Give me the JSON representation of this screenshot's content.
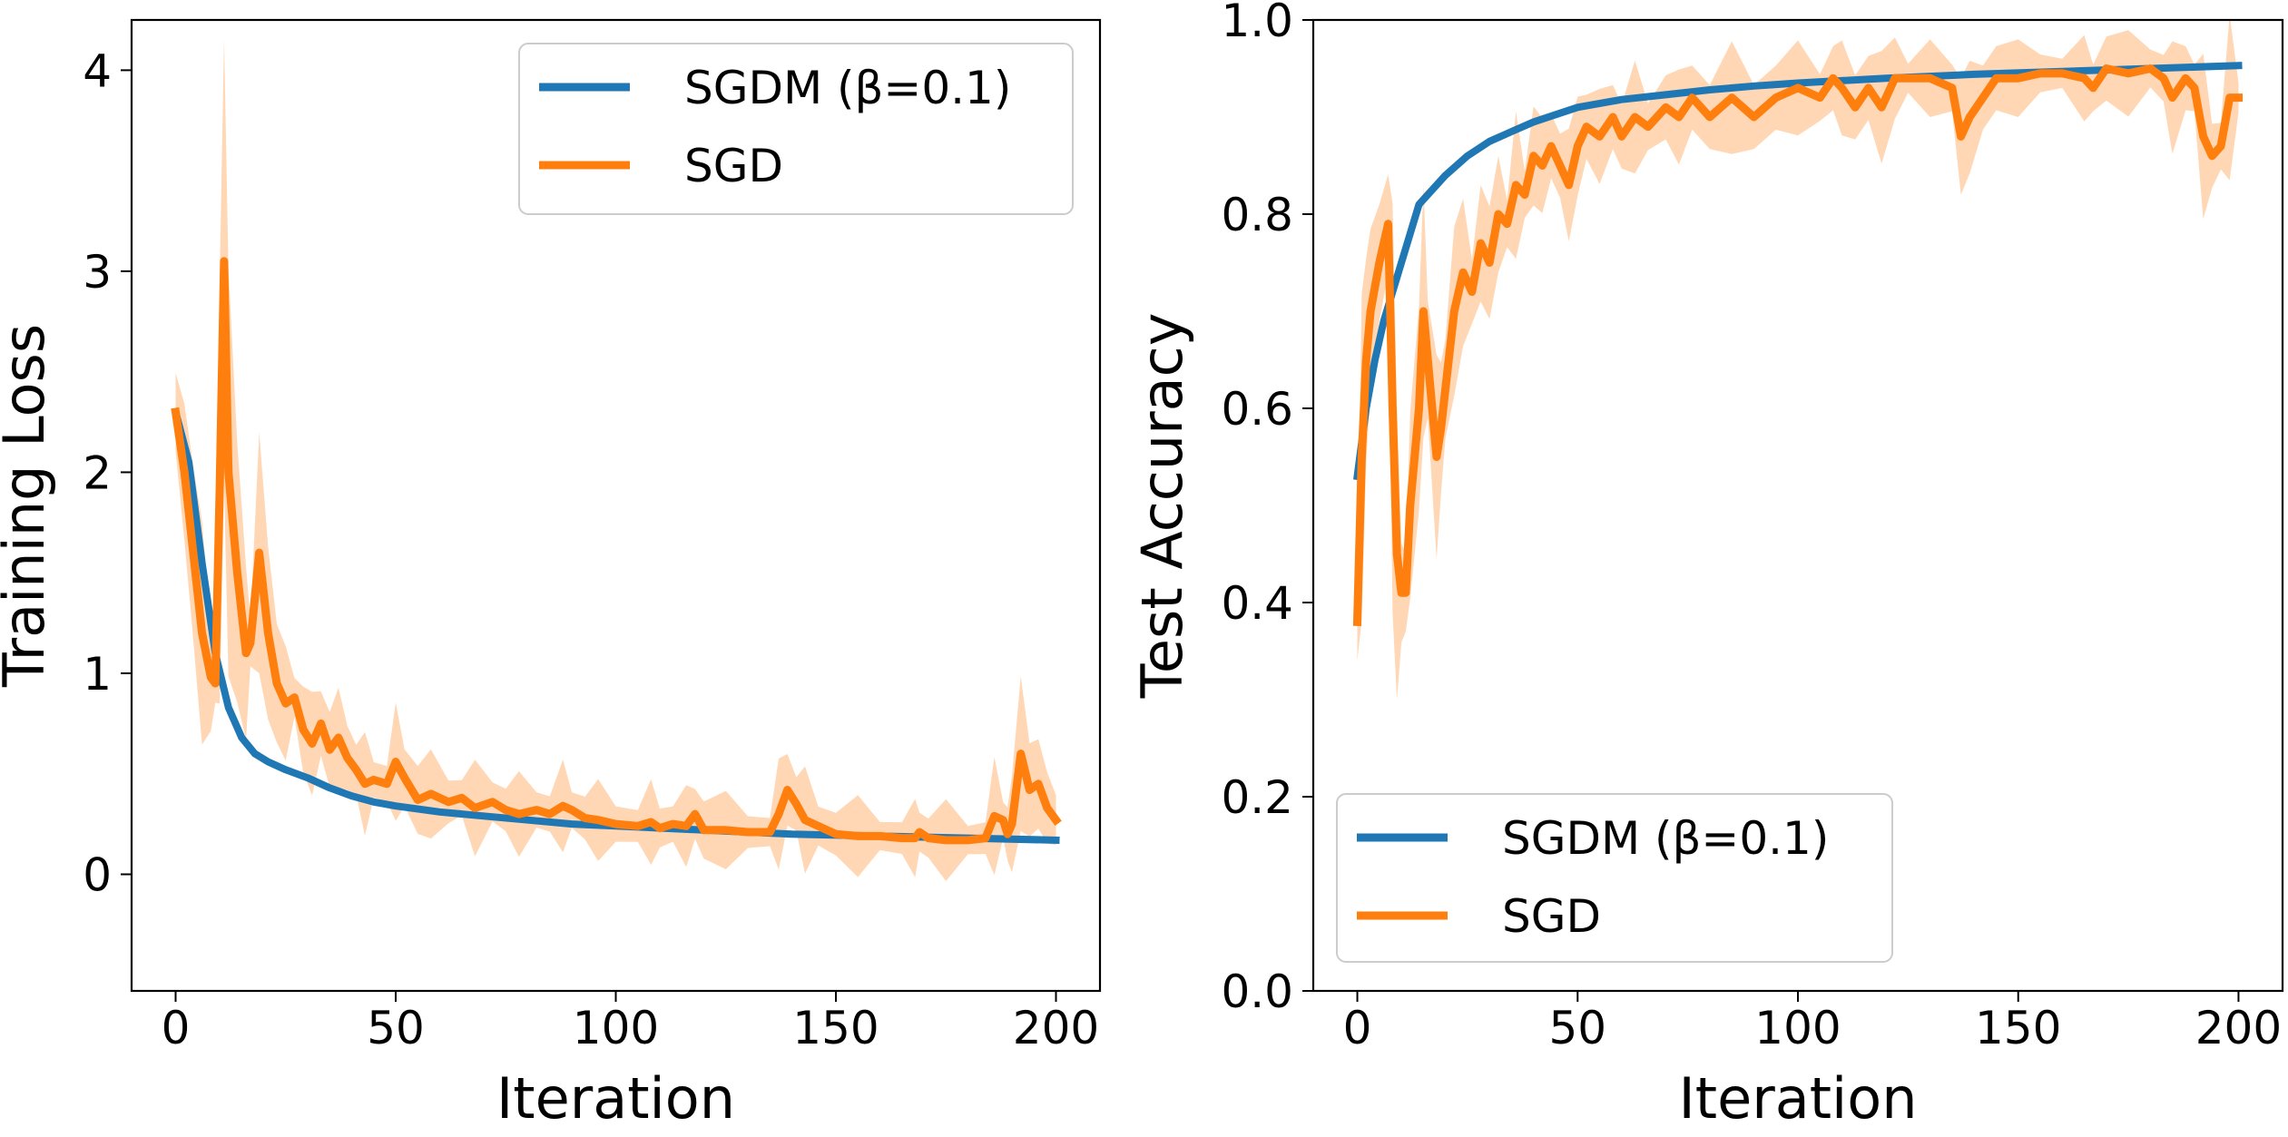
{
  "colors": {
    "sgdm": "#1f77b4",
    "sgd": "#ff7f0e",
    "band": "#ffd7b5"
  },
  "chart_data": [
    {
      "type": "line",
      "title": "",
      "xlabel": "Iteration",
      "ylabel": "Training Loss",
      "xlim": [
        -10,
        210
      ],
      "ylim": [
        -0.58,
        4.25
      ],
      "xticks": [
        0,
        50,
        100,
        150,
        200
      ],
      "xtick_labels": [
        "0",
        "50",
        "100",
        "150",
        "200"
      ],
      "yticks": [
        0,
        1,
        2,
        3,
        4
      ],
      "ytick_labels": [
        "0",
        "1",
        "2",
        "3",
        "4"
      ],
      "legend": {
        "location": "upper-right",
        "entries": [
          "SGDM (β=0.1)",
          "SGD"
        ]
      },
      "series": [
        {
          "name": "SGDM (β=0.1)",
          "key": "sgdm",
          "x": [
            0,
            3,
            6,
            9,
            12,
            15,
            18,
            21,
            25,
            30,
            35,
            40,
            45,
            50,
            60,
            70,
            80,
            90,
            100,
            120,
            140,
            160,
            180,
            200
          ],
          "y": [
            2.3,
            2.05,
            1.55,
            1.1,
            0.83,
            0.68,
            0.6,
            0.56,
            0.52,
            0.48,
            0.43,
            0.39,
            0.36,
            0.34,
            0.31,
            0.29,
            0.27,
            0.25,
            0.24,
            0.22,
            0.2,
            0.19,
            0.18,
            0.17
          ]
        },
        {
          "name": "SGD",
          "key": "sgd",
          "x": [
            0,
            2,
            4,
            6,
            8,
            9,
            10,
            11,
            12,
            14,
            16,
            17,
            19,
            21,
            23,
            25,
            27,
            29,
            31,
            33,
            35,
            37,
            39,
            41,
            43,
            45,
            48,
            50,
            52,
            55,
            58,
            62,
            65,
            68,
            72,
            75,
            78,
            82,
            85,
            88,
            90,
            93,
            96,
            100,
            105,
            108,
            110,
            113,
            116,
            118,
            120,
            125,
            130,
            135,
            137,
            139,
            141,
            143,
            146,
            150,
            155,
            160,
            165,
            168,
            169,
            171,
            175,
            180,
            184,
            186,
            188,
            189,
            190,
            192,
            194,
            196,
            198,
            200
          ],
          "y": [
            2.3,
            2.0,
            1.6,
            1.2,
            0.98,
            0.95,
            1.9,
            3.05,
            2.0,
            1.5,
            1.1,
            1.15,
            1.6,
            1.2,
            0.95,
            0.85,
            0.88,
            0.72,
            0.65,
            0.75,
            0.62,
            0.68,
            0.58,
            0.52,
            0.45,
            0.47,
            0.45,
            0.56,
            0.48,
            0.37,
            0.4,
            0.36,
            0.38,
            0.33,
            0.36,
            0.32,
            0.3,
            0.32,
            0.3,
            0.34,
            0.32,
            0.28,
            0.27,
            0.25,
            0.24,
            0.26,
            0.23,
            0.25,
            0.24,
            0.3,
            0.22,
            0.22,
            0.21,
            0.21,
            0.3,
            0.42,
            0.35,
            0.27,
            0.24,
            0.2,
            0.19,
            0.19,
            0.18,
            0.18,
            0.21,
            0.18,
            0.17,
            0.17,
            0.18,
            0.29,
            0.27,
            0.2,
            0.25,
            0.6,
            0.42,
            0.45,
            0.33,
            0.27
          ]
        }
      ]
    },
    {
      "type": "line",
      "title": "",
      "xlabel": "Iteration",
      "ylabel": "Test Accuracy",
      "xlim": [
        -10,
        210
      ],
      "ylim": [
        0.0,
        1.0
      ],
      "xticks": [
        0,
        50,
        100,
        150,
        200
      ],
      "xtick_labels": [
        "0",
        "50",
        "100",
        "150",
        "200"
      ],
      "yticks": [
        0.0,
        0.2,
        0.4,
        0.6,
        0.8,
        1.0
      ],
      "ytick_labels": [
        "0.0",
        "0.2",
        "0.4",
        "0.6",
        "0.8",
        "1.0"
      ],
      "legend": {
        "location": "lower-left",
        "entries": [
          "SGDM (β=0.1)",
          "SGD"
        ]
      },
      "series": [
        {
          "name": "SGDM (β=0.1)",
          "key": "sgdm",
          "x": [
            0,
            2,
            4,
            6,
            8,
            10,
            12,
            14,
            16,
            20,
            25,
            30,
            35,
            40,
            50,
            60,
            70,
            80,
            90,
            100,
            120,
            140,
            160,
            180,
            200
          ],
          "y": [
            0.53,
            0.6,
            0.65,
            0.69,
            0.72,
            0.75,
            0.78,
            0.81,
            0.82,
            0.84,
            0.86,
            0.875,
            0.885,
            0.895,
            0.91,
            0.918,
            0.923,
            0.928,
            0.932,
            0.935,
            0.94,
            0.944,
            0.947,
            0.95,
            0.953
          ]
        },
        {
          "name": "SGD",
          "key": "sgd",
          "x": [
            0,
            1,
            2,
            3,
            5,
            7,
            8,
            9,
            10,
            11,
            12,
            14,
            15,
            16,
            18,
            19,
            20,
            22,
            24,
            26,
            28,
            30,
            32,
            34,
            36,
            38,
            40,
            42,
            44,
            46,
            48,
            50,
            52,
            55,
            58,
            60,
            63,
            66,
            70,
            73,
            76,
            80,
            85,
            90,
            95,
            100,
            105,
            108,
            110,
            113,
            116,
            119,
            122,
            125,
            130,
            135,
            137,
            139,
            142,
            145,
            150,
            155,
            160,
            165,
            167,
            170,
            175,
            180,
            183,
            185,
            188,
            190,
            192,
            194,
            196,
            198,
            200
          ],
          "y": [
            0.38,
            0.55,
            0.65,
            0.7,
            0.75,
            0.79,
            0.6,
            0.45,
            0.41,
            0.41,
            0.5,
            0.6,
            0.7,
            0.65,
            0.55,
            0.58,
            0.62,
            0.7,
            0.74,
            0.72,
            0.77,
            0.75,
            0.8,
            0.79,
            0.83,
            0.82,
            0.86,
            0.85,
            0.87,
            0.85,
            0.83,
            0.87,
            0.89,
            0.88,
            0.9,
            0.88,
            0.9,
            0.89,
            0.91,
            0.9,
            0.92,
            0.9,
            0.92,
            0.9,
            0.92,
            0.93,
            0.92,
            0.94,
            0.93,
            0.91,
            0.93,
            0.91,
            0.94,
            0.94,
            0.94,
            0.93,
            0.88,
            0.9,
            0.92,
            0.94,
            0.94,
            0.945,
            0.945,
            0.94,
            0.93,
            0.95,
            0.945,
            0.95,
            0.94,
            0.92,
            0.94,
            0.93,
            0.88,
            0.86,
            0.87,
            0.92,
            0.92
          ]
        }
      ]
    }
  ]
}
